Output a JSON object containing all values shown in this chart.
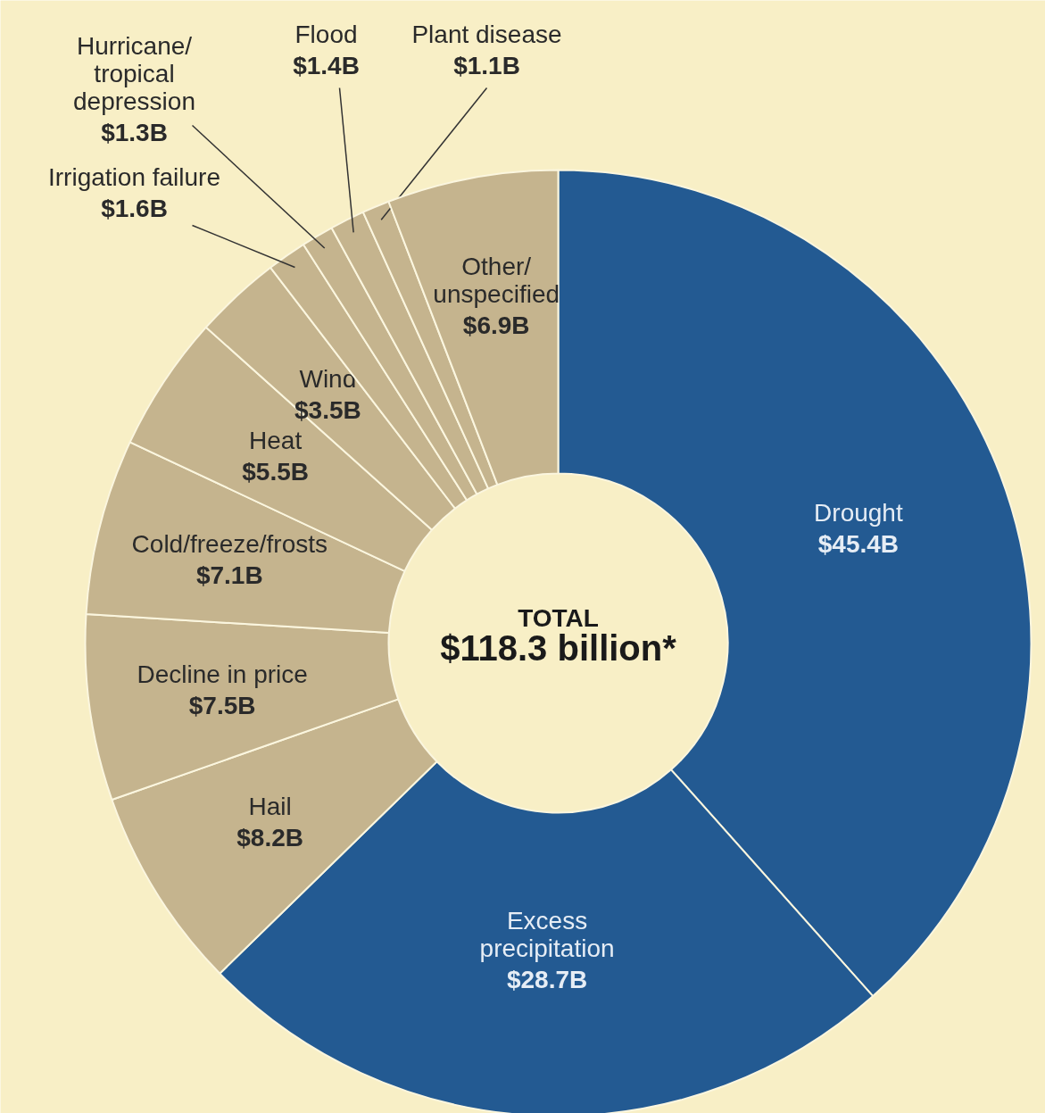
{
  "chart_data": {
    "type": "donut",
    "categories": [
      "Drought",
      "Excess\nprecipitation",
      "Hail",
      "Decline in price",
      "Cold/freeze/frosts",
      "Heat",
      "Wind",
      "Irrigation failure",
      "Hurricane/\ntropical\ndepression",
      "Flood",
      "Plant disease",
      "Other/\nunspecified"
    ],
    "values": [
      45.4,
      28.7,
      8.2,
      7.5,
      7.1,
      5.5,
      3.5,
      1.6,
      1.3,
      1.4,
      1.1,
      6.9
    ],
    "value_labels": [
      "$45.4B",
      "$28.7B",
      "$8.2B",
      "$7.5B",
      "$7.1B",
      "$5.5B",
      "$3.5B",
      "$1.6B",
      "$1.3B",
      "$1.4B",
      "$1.1B",
      "$6.9B"
    ],
    "colors": [
      "#235a92",
      "#235a92",
      "#c5b48e",
      "#c5b48e",
      "#c5b48e",
      "#c5b48e",
      "#c5b48e",
      "#c5b48e",
      "#c5b48e",
      "#c5b48e",
      "#c5b48e",
      "#c5b48e"
    ],
    "annotations": [
      "TOTAL",
      "$118.3 billion*"
    ]
  }
}
